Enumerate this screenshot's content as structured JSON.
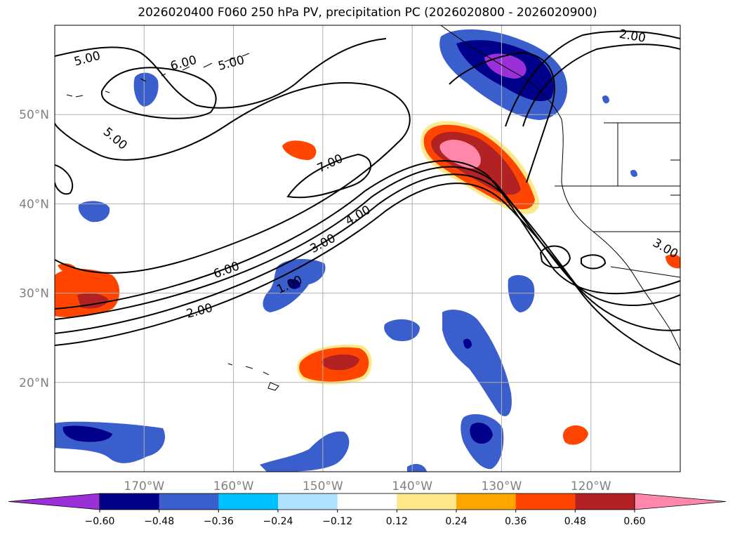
{
  "title": "2026020400 F060 250 hPa PV, precipitation PC (2026020800 - 2026020900)",
  "map": {
    "lon_range": [
      -180,
      -110
    ],
    "lat_range": [
      10,
      60
    ],
    "lon_ticks": [
      {
        "value": -170,
        "label": "170°W"
      },
      {
        "value": -160,
        "label": "160°W"
      },
      {
        "value": -150,
        "label": "150°W"
      },
      {
        "value": -140,
        "label": "140°W"
      },
      {
        "value": -130,
        "label": "130°W"
      },
      {
        "value": -120,
        "label": "120°W"
      }
    ],
    "lat_ticks": [
      {
        "value": 20,
        "label": "20°N"
      },
      {
        "value": 30,
        "label": "30°N"
      },
      {
        "value": 40,
        "label": "40°N"
      },
      {
        "value": 50,
        "label": "50°N"
      }
    ],
    "grid": true,
    "contour_labels": [
      "5.00",
      "6.00",
      "5.00",
      "5.00",
      "7.00",
      "4.00",
      "3.00",
      "6.00",
      "1.00",
      "2.00",
      "2.00",
      "3.00"
    ]
  },
  "colorbar": {
    "colors": [
      "#9b30d9",
      "#00008b",
      "#3a5fcd",
      "#00bfff",
      "#b0e2ff",
      "#ffffff",
      "#ffe88a",
      "#ffa500",
      "#ff4500",
      "#b22222",
      "#ff88aa"
    ],
    "tick_labels": [
      "−0.60",
      "−0.48",
      "−0.36",
      "−0.24",
      "−0.12",
      "0.12",
      "0.24",
      "0.36",
      "0.48",
      "0.60"
    ]
  }
}
